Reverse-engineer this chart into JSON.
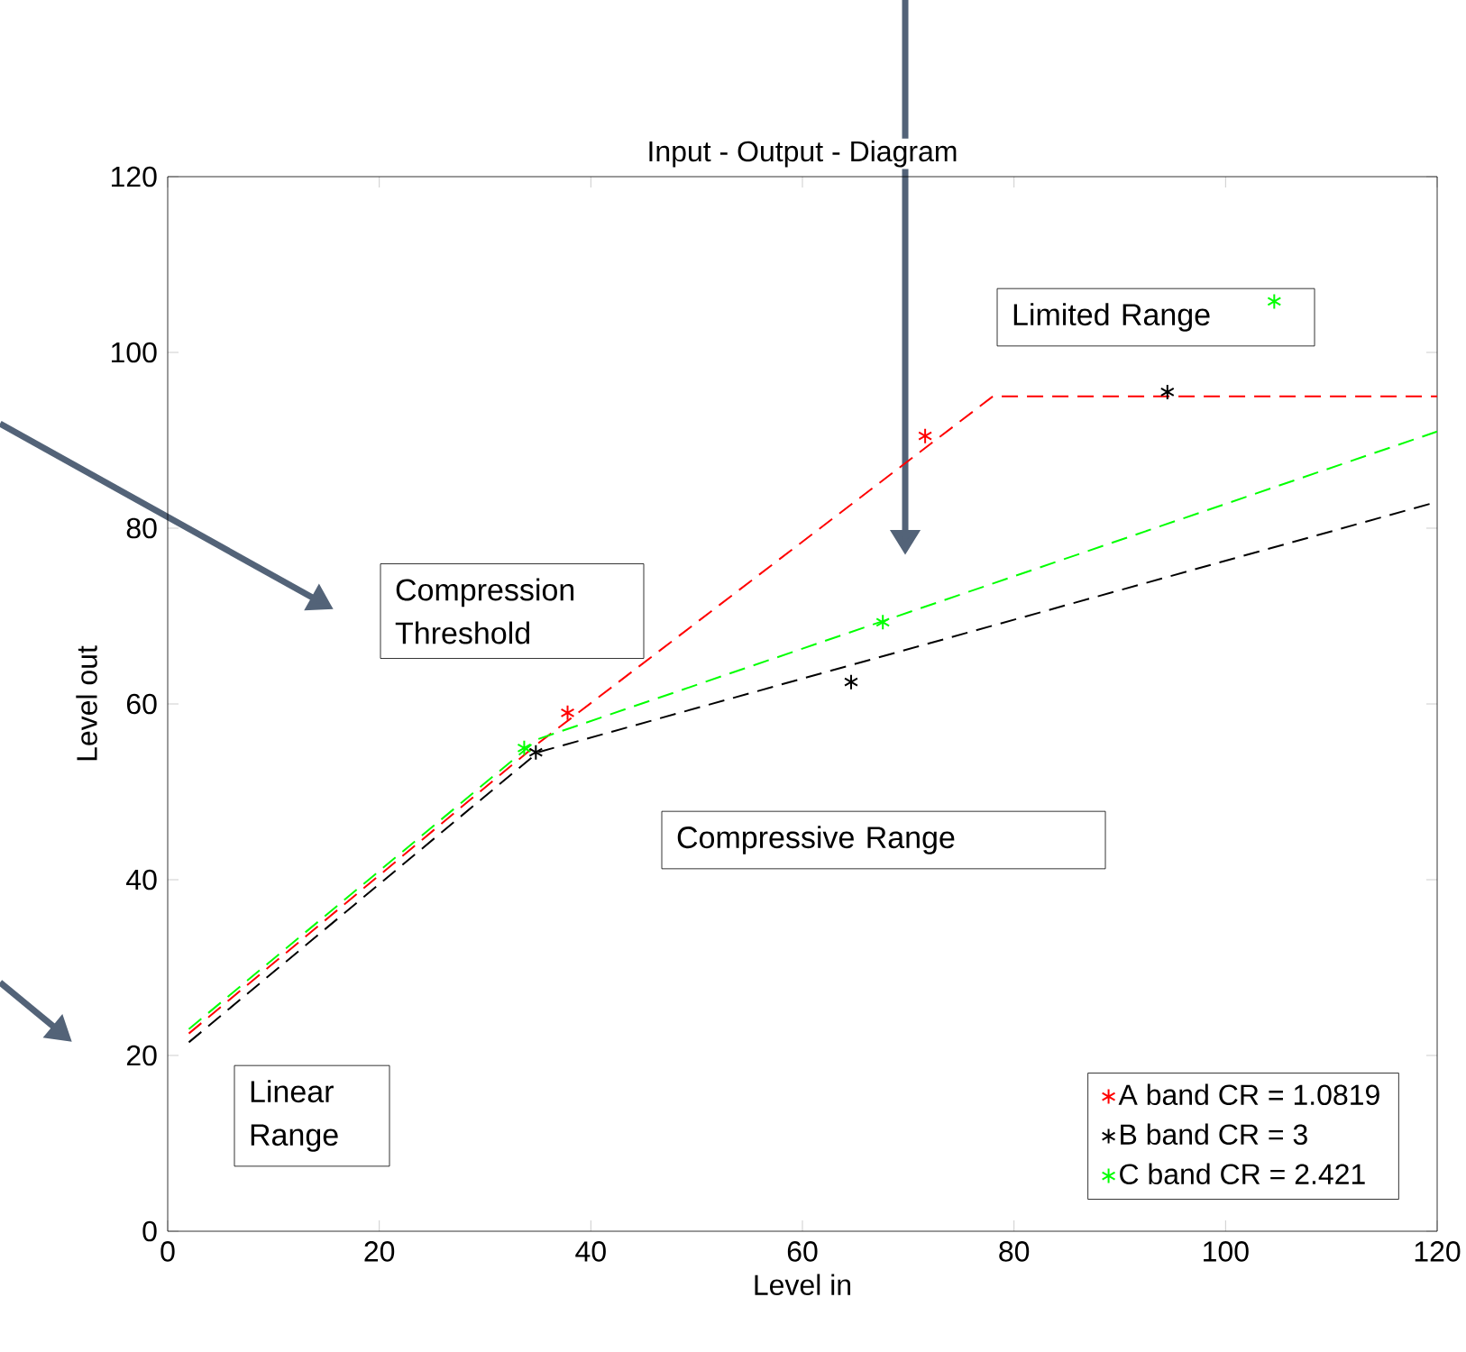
{
  "chart_data": {
    "type": "line",
    "title": "Input - Output - Diagram",
    "xlabel": "Level in",
    "ylabel": "Level out",
    "xlim": [
      0,
      120
    ],
    "ylim": [
      0,
      120
    ],
    "xticks": [
      0,
      20,
      40,
      60,
      80,
      100,
      120
    ],
    "yticks": [
      0,
      20,
      40,
      60,
      80,
      100,
      120
    ],
    "legend": "bottom right",
    "grid": false,
    "series": [
      {
        "type": "line",
        "color": "#ff0000",
        "line_style": "dashed",
        "x": [
          2,
          35,
          78,
          120
        ],
        "values": [
          22.5,
          55.5,
          95,
          95
        ]
      },
      {
        "type": "line",
        "color": "#000000",
        "line_style": "dashed",
        "x": [
          2,
          35,
          120
        ],
        "values": [
          21.5,
          54.5,
          83
        ]
      },
      {
        "type": "line",
        "color": "#00ff00",
        "line_style": "dashed",
        "x": [
          2,
          35,
          120
        ],
        "values": [
          23,
          56,
          91
        ]
      },
      {
        "type": "scatter",
        "name": "A band CR = 1.0819",
        "color": "#ff0000",
        "marker": "cross",
        "x": [
          37.8,
          71.6
        ],
        "values": [
          59,
          90.5
        ]
      },
      {
        "type": "scatter",
        "name": "B band CR = 3",
        "color": "#000000",
        "marker": "cross",
        "x": [
          34.8,
          64.6,
          94.5
        ],
        "values": [
          54.5,
          62.5,
          95.5
        ]
      },
      {
        "type": "scatter",
        "name": "C band CR = 2.421",
        "color": "#00ff00",
        "marker": "cross",
        "x": [
          33.7,
          67.6,
          104.6
        ],
        "values": [
          55,
          69.3,
          105.8
        ]
      }
    ],
    "annotations": [
      "Compression Threshold",
      "Compressive Range",
      "Limited Range",
      "Linear Range"
    ]
  }
}
